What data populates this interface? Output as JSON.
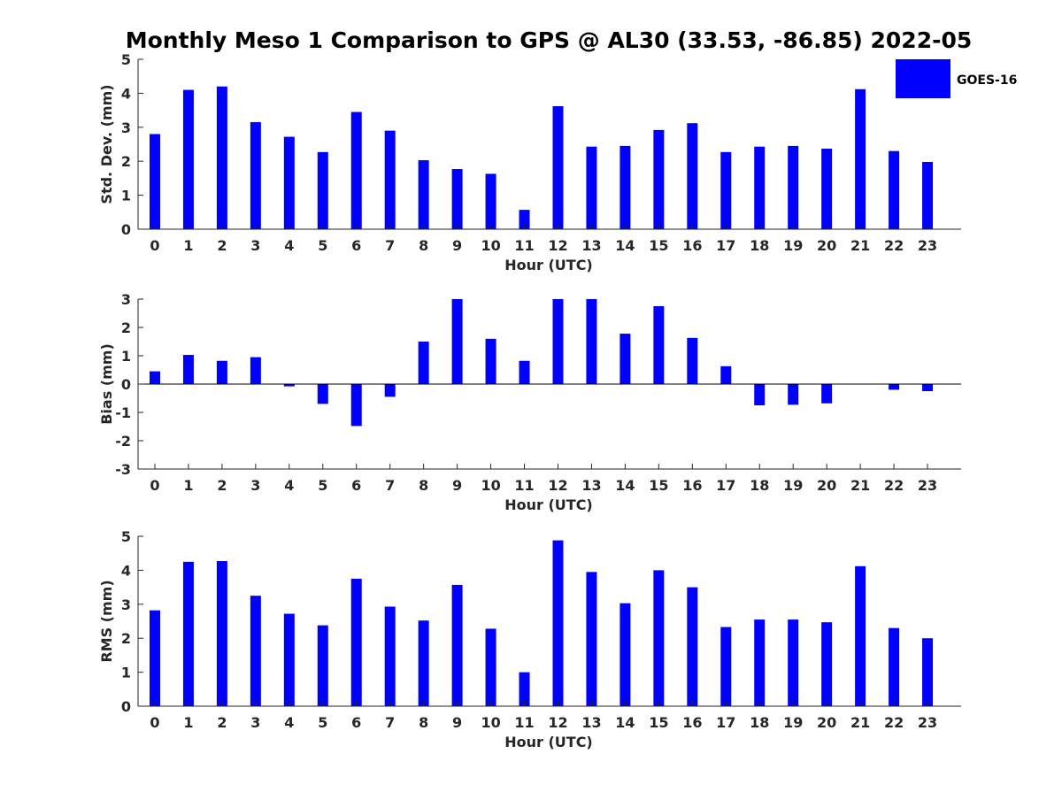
{
  "chart_data": {
    "title": "Monthly Meso 1 Comparison to GPS @ AL30 (33.53, -86.85) 2022-05",
    "legend": {
      "label": "GOES-16",
      "color": "#0000ff",
      "placement": "top-right"
    },
    "bar_color": "#0000ff",
    "panels": [
      {
        "id": "std",
        "type": "bar",
        "ylabel": "Std. Dev. (mm)",
        "xlabel": "Hour (UTC)",
        "ylim": [
          0,
          5
        ],
        "yticks": [
          0,
          1,
          2,
          3,
          4,
          5
        ],
        "categories": [
          "0",
          "1",
          "2",
          "3",
          "4",
          "5",
          "6",
          "7",
          "8",
          "9",
          "10",
          "11",
          "12",
          "13",
          "14",
          "15",
          "16",
          "17",
          "18",
          "19",
          "20",
          "21",
          "22",
          "23"
        ],
        "series": [
          {
            "name": "GOES-16",
            "values": [
              2.8,
              4.1,
              4.2,
              3.15,
              2.72,
              2.27,
              3.45,
              2.9,
              2.03,
              1.77,
              1.63,
              0.57,
              3.62,
              2.43,
              2.45,
              2.92,
              3.12,
              2.27,
              2.43,
              2.45,
              2.37,
              4.12,
              2.3,
              1.98
            ]
          }
        ]
      },
      {
        "id": "bias",
        "type": "bar",
        "ylabel": "Bias (mm)",
        "xlabel": "Hour (UTC)",
        "ylim": [
          -3,
          3
        ],
        "yticks": [
          -3,
          -2,
          -1,
          0,
          1,
          2,
          3
        ],
        "zero_line": true,
        "categories": [
          "0",
          "1",
          "2",
          "3",
          "4",
          "5",
          "6",
          "7",
          "8",
          "9",
          "10",
          "11",
          "12",
          "13",
          "14",
          "15",
          "16",
          "17",
          "18",
          "19",
          "20",
          "21",
          "22",
          "23"
        ],
        "series": [
          {
            "name": "GOES-16",
            "values": [
              0.45,
              1.03,
              0.82,
              0.95,
              -0.08,
              -0.7,
              -1.48,
              -0.45,
              1.5,
              3.0,
              1.6,
              0.82,
              3.0,
              3.0,
              1.78,
              2.75,
              1.63,
              0.63,
              -0.75,
              -0.73,
              -0.68,
              0.0,
              -0.2,
              -0.25
            ]
          }
        ]
      },
      {
        "id": "rms",
        "type": "bar",
        "ylabel": "RMS (mm)",
        "xlabel": "Hour (UTC)",
        "ylim": [
          0,
          5
        ],
        "yticks": [
          0,
          1,
          2,
          3,
          4,
          5
        ],
        "categories": [
          "0",
          "1",
          "2",
          "3",
          "4",
          "5",
          "6",
          "7",
          "8",
          "9",
          "10",
          "11",
          "12",
          "13",
          "14",
          "15",
          "16",
          "17",
          "18",
          "19",
          "20",
          "21",
          "22",
          "23"
        ],
        "series": [
          {
            "name": "GOES-16",
            "values": [
              2.82,
              4.25,
              4.27,
              3.25,
              2.72,
              2.38,
              3.75,
              2.93,
              2.52,
              3.57,
              2.28,
              1.0,
              4.88,
              3.95,
              3.03,
              4.0,
              3.5,
              2.33,
              2.55,
              2.55,
              2.47,
              4.12,
              2.3,
              2.0
            ]
          }
        ]
      }
    ]
  }
}
